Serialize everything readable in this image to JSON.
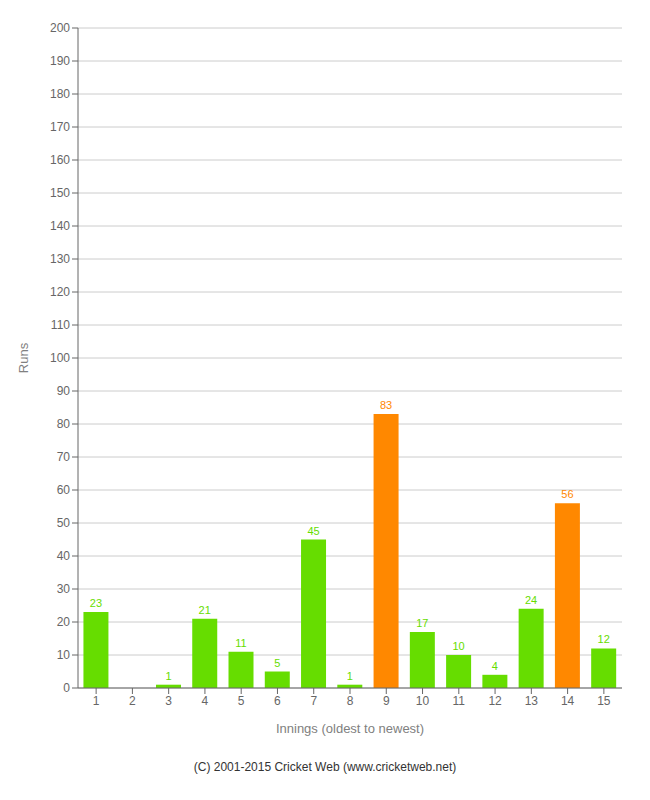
{
  "chart_data": {
    "type": "bar",
    "categories": [
      "1",
      "2",
      "3",
      "4",
      "5",
      "6",
      "7",
      "8",
      "9",
      "10",
      "11",
      "12",
      "13",
      "14",
      "15"
    ],
    "values": [
      23,
      0,
      1,
      21,
      11,
      5,
      45,
      1,
      83,
      17,
      10,
      4,
      24,
      56,
      12
    ],
    "colors": [
      "#66dd00",
      "#66dd00",
      "#66dd00",
      "#66dd00",
      "#66dd00",
      "#66dd00",
      "#66dd00",
      "#66dd00",
      "#ff8800",
      "#66dd00",
      "#66dd00",
      "#66dd00",
      "#66dd00",
      "#ff8800",
      "#66dd00"
    ],
    "x_label": "Innings (oldest to newest)",
    "y_label": "Runs",
    "ylim": [
      0,
      200
    ],
    "yticks": [
      0,
      10,
      20,
      30,
      40,
      50,
      60,
      70,
      80,
      90,
      100,
      110,
      120,
      130,
      140,
      150,
      160,
      170,
      180,
      190,
      200
    ],
    "grid": true,
    "data_labels": true,
    "annotations": [
      "(C) 2001-2015 Cricket Web (www.cricketweb.net)"
    ]
  }
}
